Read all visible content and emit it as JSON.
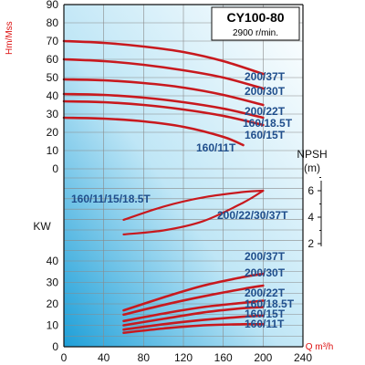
{
  "chart_data": {
    "type": "line",
    "title": "CY100-80",
    "subtitle": "2900 r/min.",
    "x": {
      "label": "Q m³/h",
      "ticks": [
        0,
        40,
        80,
        120,
        160,
        200,
        240
      ],
      "range": [
        0,
        240
      ]
    },
    "head": {
      "label": "Hm/Mss",
      "ticks": [
        0,
        10,
        20,
        30,
        40,
        50,
        60,
        70,
        80,
        90
      ],
      "range": [
        0,
        90
      ],
      "series": [
        {
          "name": "200/37T",
          "x": [
            0,
            40,
            80,
            120,
            160,
            200
          ],
          "y": [
            70,
            69,
            67,
            64,
            59,
            52
          ]
        },
        {
          "name": "200/30T",
          "x": [
            0,
            40,
            80,
            120,
            160,
            200
          ],
          "y": [
            60,
            59,
            57,
            54,
            50,
            44
          ]
        },
        {
          "name": "200/22T",
          "x": [
            0,
            40,
            80,
            120,
            160,
            200
          ],
          "y": [
            49,
            48.5,
            47,
            44.5,
            40.5,
            35
          ]
        },
        {
          "name": "160/18.5T",
          "x": [
            0,
            40,
            80,
            120,
            160,
            200
          ],
          "y": [
            41,
            40.5,
            39,
            36.5,
            33,
            28
          ]
        },
        {
          "name": "160/15T",
          "x": [
            0,
            40,
            80,
            120,
            160,
            200
          ],
          "y": [
            37,
            36.5,
            35,
            32.5,
            29,
            24
          ]
        },
        {
          "name": "160/11T",
          "x": [
            0,
            40,
            80,
            120,
            160,
            180
          ],
          "y": [
            28,
            27.5,
            26,
            23,
            17.5,
            13
          ]
        }
      ]
    },
    "npsh": {
      "label": "NPSH",
      "unit": "(m)",
      "ticks": [
        2,
        4,
        6
      ],
      "range": [
        1.2,
        7.4
      ],
      "series": [
        {
          "name": "160/11/15/18.5T",
          "x": [
            60,
            100,
            140,
            180,
            200
          ],
          "y": [
            3.8,
            4.8,
            5.5,
            5.9,
            6.0
          ]
        },
        {
          "name": "200/22/30/37T",
          "x": [
            60,
            100,
            140,
            180,
            200
          ],
          "y": [
            2.7,
            3.0,
            3.7,
            5.1,
            6.0
          ]
        }
      ]
    },
    "power": {
      "label": "KW",
      "ticks": [
        0,
        10,
        20,
        30,
        40
      ],
      "range": [
        0,
        45
      ],
      "series": [
        {
          "name": "200/37T",
          "x": [
            60,
            100,
            140,
            180,
            200
          ],
          "y": [
            17,
            23,
            28.5,
            32.5,
            34
          ]
        },
        {
          "name": "200/30T",
          "x": [
            60,
            100,
            140,
            180,
            200
          ],
          "y": [
            15,
            19.5,
            23.5,
            27,
            28.5
          ]
        },
        {
          "name": "200/22T",
          "x": [
            60,
            100,
            140,
            180,
            200
          ],
          "y": [
            12,
            15.5,
            18.5,
            20.5,
            21.5
          ]
        },
        {
          "name": "160/18.5T",
          "x": [
            60,
            100,
            140,
            180,
            200
          ],
          "y": [
            10,
            13,
            16,
            18,
            18.5
          ]
        },
        {
          "name": "160/15T",
          "x": [
            60,
            100,
            140,
            180,
            200
          ],
          "y": [
            8,
            10.5,
            12.5,
            14,
            14.5
          ]
        },
        {
          "name": "160/11T",
          "x": [
            60,
            100,
            140,
            180,
            200
          ],
          "y": [
            6.5,
            8.5,
            10,
            10.5,
            10.5
          ]
        }
      ]
    },
    "grid": true
  }
}
